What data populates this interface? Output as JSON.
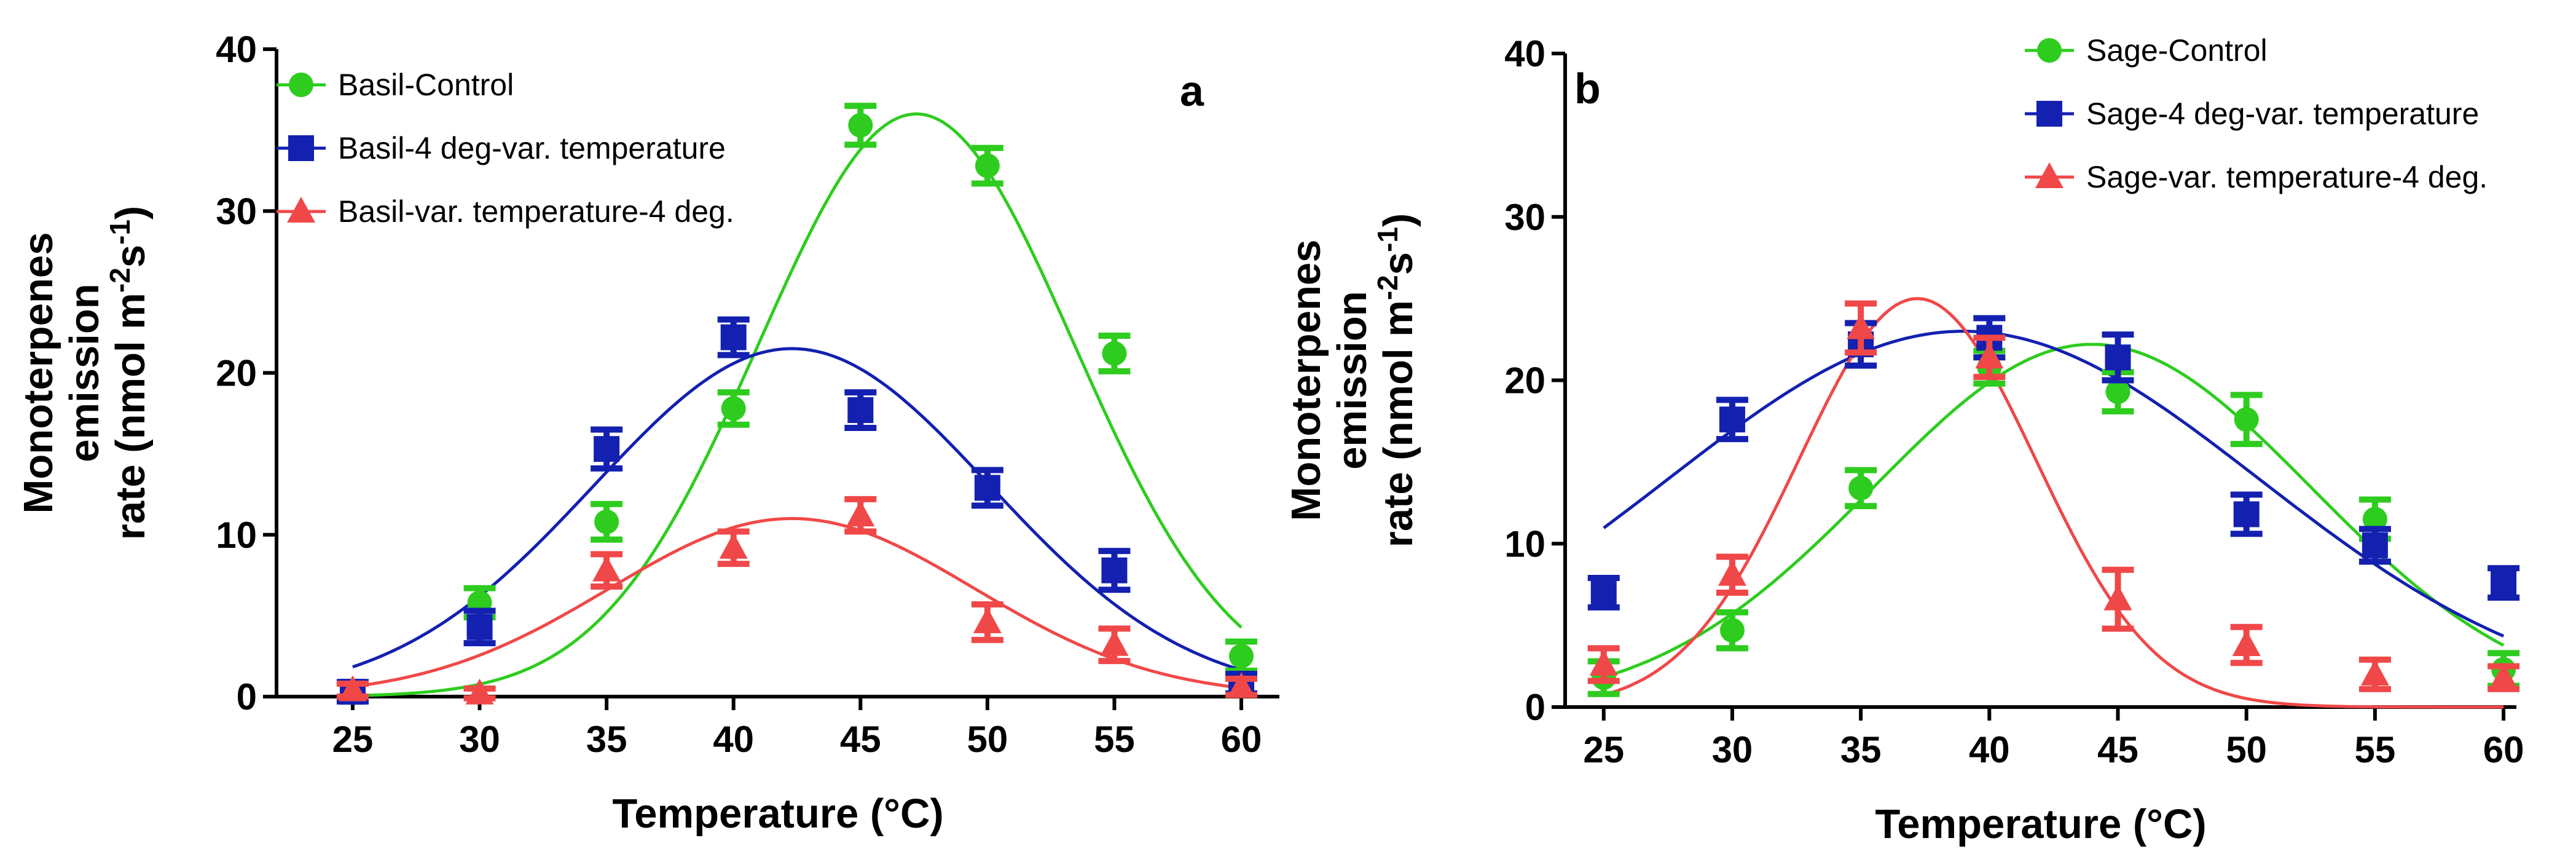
{
  "chart_data": [
    {
      "type": "scatter",
      "panel_label": "a",
      "xlabel": "Temperature (°C)",
      "ylabel": [
        "Monoterpenes",
        "emission",
        "rate (nmol m",
        "-2",
        "s",
        "-1",
        ")"
      ],
      "xlim": [
        22,
        61.5
      ],
      "ylim": [
        0,
        40
      ],
      "x_ticks": [
        25,
        30,
        35,
        40,
        45,
        50,
        55,
        60
      ],
      "y_ticks": [
        0,
        10,
        20,
        30,
        40
      ],
      "legend_position": "top-left",
      "grid": false,
      "series": [
        {
          "name": "Basil-Control",
          "color": "#2ecc1e",
          "marker": "circle",
          "x": [
            25,
            30,
            35,
            40,
            45,
            50,
            55,
            60
          ],
          "y": [
            0.3,
            5.8,
            10.8,
            17.8,
            35.3,
            32.8,
            21.2,
            2.5
          ],
          "err": [
            0.5,
            0.9,
            1.1,
            1.0,
            1.2,
            1.1,
            1.1,
            0.9
          ],
          "fit": {
            "a": 36,
            "mu": 47.2,
            "sigma": 6.2
          }
        },
        {
          "name": "Basil-4 deg-var. temperature",
          "color": "#1320b0",
          "marker": "square",
          "x": [
            25,
            30,
            35,
            40,
            45,
            50,
            55,
            60
          ],
          "y": [
            0.3,
            4.3,
            15.3,
            22.2,
            17.7,
            12.9,
            7.8,
            0.8
          ],
          "err": [
            0.6,
            1.0,
            1.2,
            1.1,
            1.1,
            1.1,
            1.2,
            0.6
          ],
          "fit": {
            "a": 21.5,
            "mu": 42.3,
            "sigma": 7.8
          }
        },
        {
          "name": "Basil-var. temperature-4 deg.",
          "color": "#f04848",
          "marker": "triangle",
          "x": [
            25,
            30,
            35,
            40,
            45,
            50,
            55,
            60
          ],
          "y": [
            0.4,
            0.2,
            7.8,
            9.2,
            11.2,
            4.6,
            3.2,
            0.6
          ],
          "err": [
            0.4,
            0.3,
            1.0,
            1.0,
            1.0,
            1.1,
            1.0,
            0.5
          ],
          "fit": {
            "a": 11,
            "mu": 42.3,
            "sigma": 7.2
          }
        }
      ]
    },
    {
      "type": "scatter",
      "panel_label": "b",
      "xlabel": "Temperature (°C)",
      "ylabel": [
        "Monoterpenes",
        "emission",
        "rate (nmol m",
        "-2",
        "s",
        "-1",
        ")"
      ],
      "xlim": [
        23.5,
        60.5
      ],
      "ylim": [
        0,
        40
      ],
      "x_ticks": [
        25,
        30,
        35,
        40,
        45,
        50,
        55,
        60
      ],
      "y_ticks": [
        0,
        10,
        20,
        30,
        40
      ],
      "legend_position": "top-right",
      "grid": false,
      "series": [
        {
          "name": "Sage-Control",
          "color": "#2ecc1e",
          "marker": "circle",
          "x": [
            25,
            30,
            35,
            40,
            45,
            50,
            55,
            60
          ],
          "y": [
            1.8,
            4.7,
            13.4,
            20.8,
            19.3,
            17.6,
            11.5,
            2.3
          ],
          "err": [
            1.0,
            1.1,
            1.1,
            1.0,
            1.2,
            1.5,
            1.2,
            1.0
          ],
          "fit": {
            "a": 22.2,
            "mu": 44.0,
            "sigma": 8.5
          }
        },
        {
          "name": "Sage-4 deg-var. temperature",
          "color": "#1320b0",
          "marker": "square",
          "x": [
            25,
            30,
            35,
            40,
            45,
            50,
            55,
            60
          ],
          "y": [
            7.0,
            17.6,
            22.2,
            22.6,
            21.4,
            11.8,
            9.9,
            7.6
          ],
          "err": [
            0.9,
            1.2,
            1.3,
            1.2,
            1.4,
            1.2,
            1.0,
            0.9
          ],
          "fit": {
            "a": 23.0,
            "mu": 39.0,
            "sigma": 11.5
          }
        },
        {
          "name": "Sage-var. temperature-4 deg.",
          "color": "#f04848",
          "marker": "triangle",
          "x": [
            25,
            30,
            35,
            40,
            45,
            50,
            55,
            60
          ],
          "y": [
            2.6,
            8.1,
            23.2,
            21.4,
            6.6,
            3.8,
            2.0,
            1.8
          ],
          "err": [
            1.0,
            1.1,
            1.5,
            1.2,
            1.8,
            1.1,
            0.9,
            0.7
          ],
          "fit": {
            "a": 25.0,
            "mu": 37.2,
            "sigma": 4.6
          }
        }
      ]
    }
  ]
}
